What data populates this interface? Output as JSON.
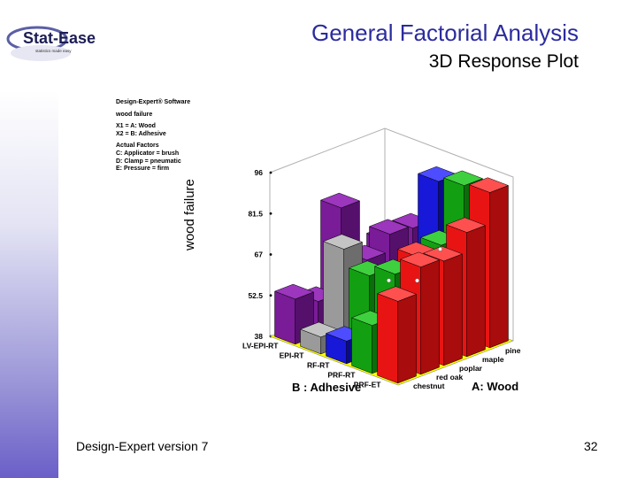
{
  "header": {
    "title": "General Factorial Analysis",
    "subtitle": "3D Response Plot",
    "logo_text": "Stat-Ease",
    "logo_tagline": "statistics made easy"
  },
  "footer": {
    "left": "Design-Expert version 7",
    "page_number": "32"
  },
  "info_panel": {
    "software": "Design-Expert® Software",
    "response": "wood failure",
    "x1": "X1 = A: Wood",
    "x2": "X2 = B: Adhesive",
    "actual_factors_heading": "Actual Factors",
    "factor_c": "C: Applicator = brush",
    "factor_d": "D: Clamp = pneumatic",
    "factor_e": "E: Pressure = firm"
  },
  "colors": {
    "title": "#2b2b9e",
    "floor": "#ffff00",
    "sidebar_bottom": "#6a5fc8"
  },
  "chart_data": {
    "type": "bar3d",
    "zlabel": "wood failure",
    "xlabel": "B : Adhesive",
    "ylabel": "A: Wood",
    "zlim": [
      38,
      96
    ],
    "zticks": [
      "96",
      "81.5",
      "67",
      "52.5",
      "38"
    ],
    "adhesives": [
      "LV-EPI-RT",
      "EPI-RT",
      "RF-RT",
      "PRF-RT",
      "PRF-ET"
    ],
    "woods": [
      "chestnut",
      "red oak",
      "poplar",
      "maple",
      "pine"
    ],
    "bars": [
      {
        "adhesive": "LV-EPI-RT",
        "wood": "pine",
        "value": 62,
        "color": "purple"
      },
      {
        "adhesive": "LV-EPI-RT",
        "wood": "maple",
        "value": 56,
        "color": "purple"
      },
      {
        "adhesive": "LV-EPI-RT",
        "wood": "poplar",
        "value": 80,
        "color": "purple"
      },
      {
        "adhesive": "LV-EPI-RT",
        "wood": "red oak",
        "value": 50,
        "color": "purple"
      },
      {
        "adhesive": "LV-EPI-RT",
        "wood": "chestnut",
        "value": 54,
        "color": "purple"
      },
      {
        "adhesive": "EPI-RT",
        "wood": "pine",
        "value": 70,
        "color": "purple"
      },
      {
        "adhesive": "EPI-RT",
        "wood": "maple",
        "value": 71,
        "color": "purple"
      },
      {
        "adhesive": "EPI-RT",
        "wood": "poplar",
        "value": 65,
        "color": "purple"
      },
      {
        "adhesive": "EPI-RT",
        "wood": "red oak",
        "value": 72,
        "color": "gray"
      },
      {
        "adhesive": "EPI-RT",
        "wood": "chestnut",
        "value": 44,
        "color": "gray"
      },
      {
        "adhesive": "RF-RT",
        "wood": "pine",
        "value": 90,
        "color": "blue"
      },
      {
        "adhesive": "RF-RT",
        "wood": "maple",
        "value": 60,
        "color": "blue"
      },
      {
        "adhesive": "RF-RT",
        "wood": "poplar",
        "value": 58,
        "color": "green"
      },
      {
        "adhesive": "RF-RT",
        "wood": "red oak",
        "value": 66,
        "color": "green"
      },
      {
        "adhesive": "RF-RT",
        "wood": "chestnut",
        "value": 46,
        "color": "blue"
      },
      {
        "adhesive": "PRF-RT",
        "wood": "pine",
        "value": 92,
        "color": "green"
      },
      {
        "adhesive": "PRF-RT",
        "wood": "maple",
        "value": 74,
        "color": "green"
      },
      {
        "adhesive": "PRF-RT",
        "wood": "poplar",
        "value": 73,
        "color": "red"
      },
      {
        "adhesive": "PRF-RT",
        "wood": "red oak",
        "value": 70,
        "color": "green"
      },
      {
        "adhesive": "PRF-RT",
        "wood": "chestnut",
        "value": 55,
        "color": "green"
      },
      {
        "adhesive": "PRF-ET",
        "wood": "pine",
        "value": 93,
        "color": "red"
      },
      {
        "adhesive": "PRF-ET",
        "wood": "maple",
        "value": 82,
        "color": "red"
      },
      {
        "adhesive": "PRF-ET",
        "wood": "poplar",
        "value": 75,
        "color": "red"
      },
      {
        "adhesive": "PRF-ET",
        "wood": "red oak",
        "value": 76,
        "color": "red"
      },
      {
        "adhesive": "PRF-ET",
        "wood": "chestnut",
        "value": 67,
        "color": "red"
      }
    ]
  }
}
